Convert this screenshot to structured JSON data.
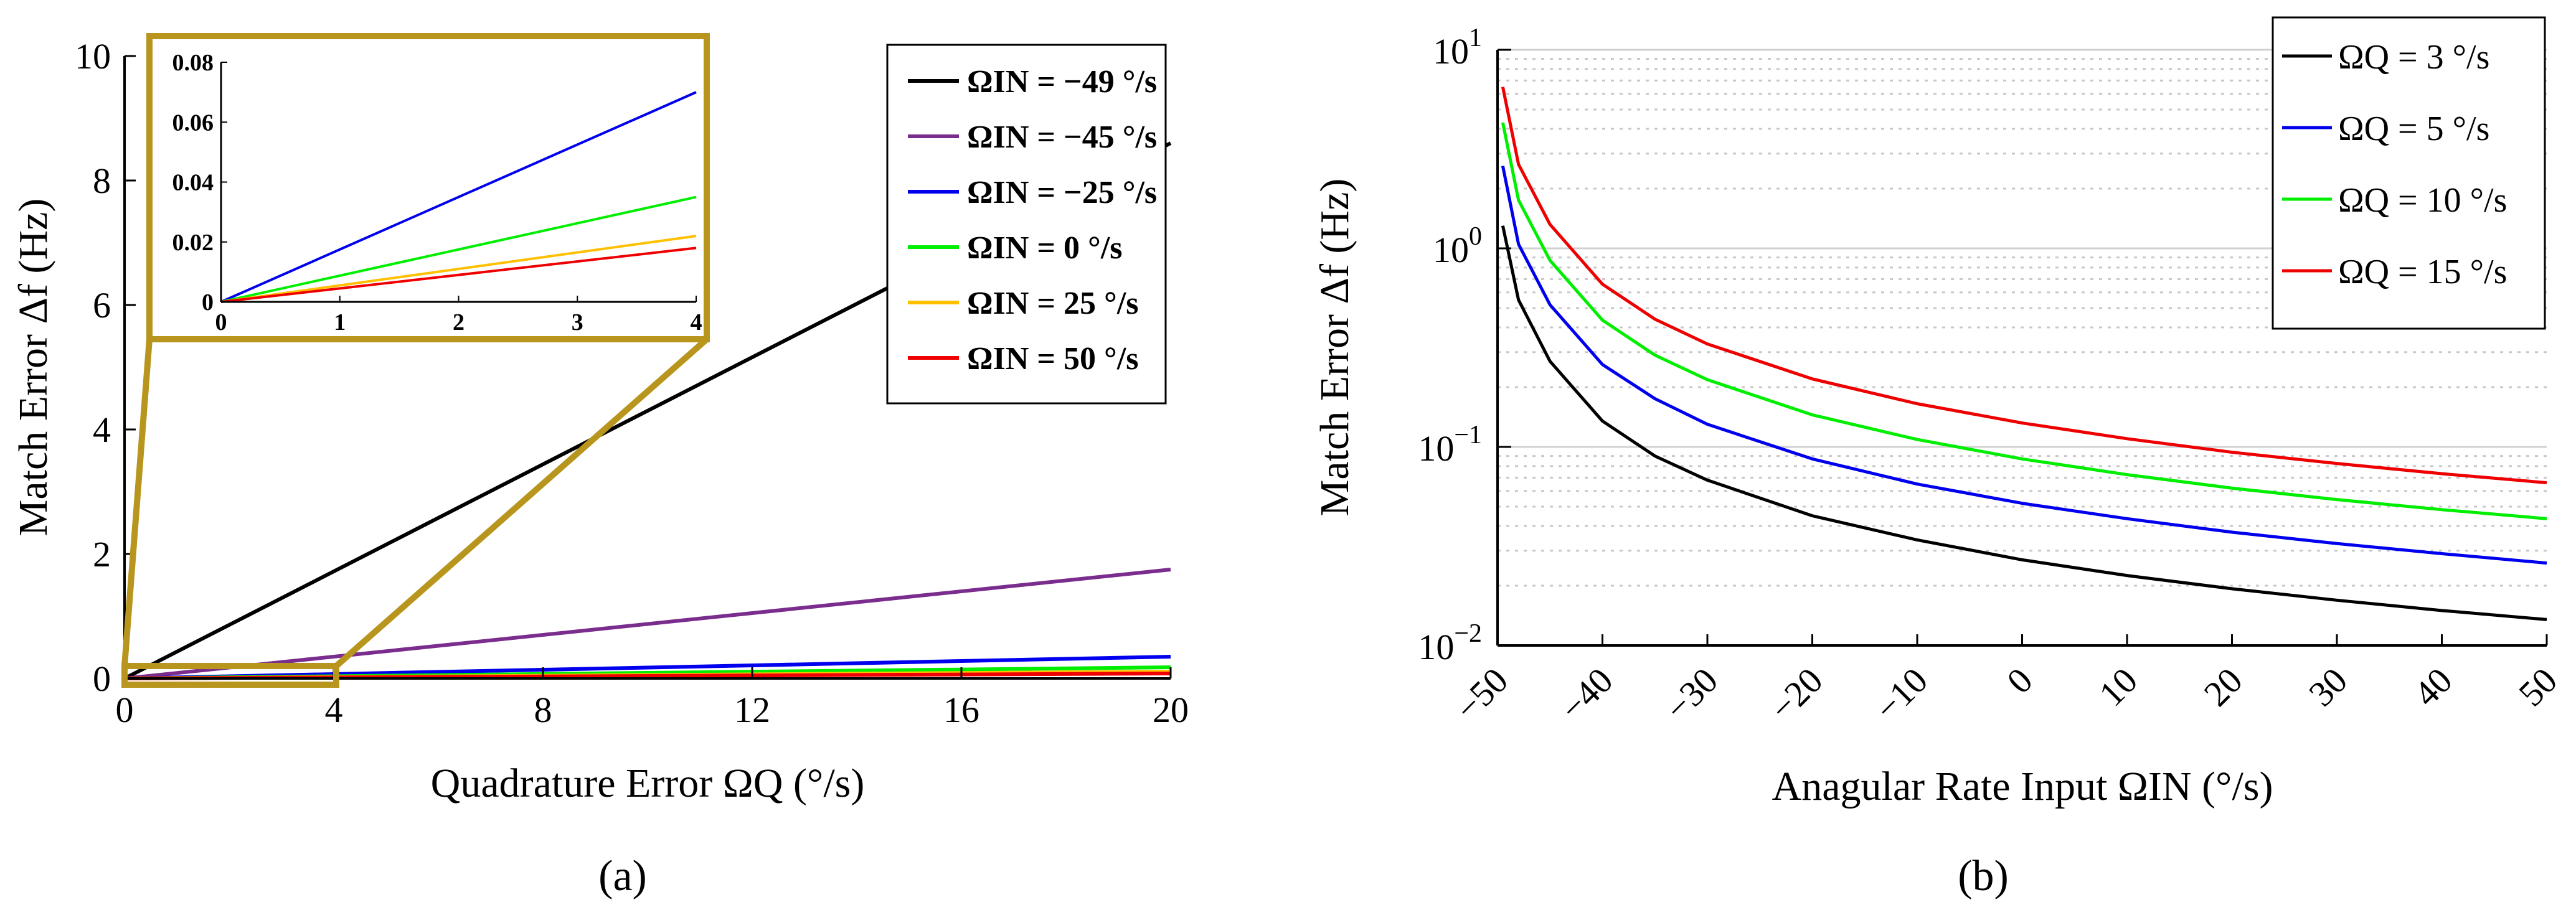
{
  "chart_data": [
    {
      "panel": "(a)",
      "type": "line",
      "xlabel": "Quadrature Error ΩQ (°/s)",
      "ylabel": "Match Error Δf (Hz)",
      "xlim": [
        0,
        20
      ],
      "ylim": [
        0,
        10
      ],
      "xticks": [
        "0",
        "4",
        "8",
        "12",
        "16",
        "20"
      ],
      "yticks": [
        "0",
        "2",
        "4",
        "6",
        "8",
        "10"
      ],
      "legend_position": "top-right",
      "grid": false,
      "series": [
        {
          "name": "ΩIN = −49 °/s",
          "color": "#000000",
          "x": [
            0,
            20
          ],
          "y": [
            0,
            8.6
          ]
        },
        {
          "name": "ΩIN = −45 °/s",
          "color": "#7b2d8e",
          "x": [
            0,
            20
          ],
          "y": [
            0,
            1.75
          ]
        },
        {
          "name": "ΩIN = −25 °/s",
          "color": "#0000ee",
          "x": [
            0,
            20
          ],
          "y": [
            0,
            0.35
          ]
        },
        {
          "name": "ΩIN = 0 °/s",
          "color": "#00ee00",
          "x": [
            0,
            20
          ],
          "y": [
            0,
            0.18
          ]
        },
        {
          "name": "ΩIN = 25 °/s",
          "color": "#ffc000",
          "x": [
            0,
            20
          ],
          "y": [
            0,
            0.11
          ]
        },
        {
          "name": "ΩIN = 50 °/s",
          "color": "#ee0000",
          "x": [
            0,
            20
          ],
          "y": [
            0,
            0.08
          ]
        }
      ],
      "inset": {
        "xlim": [
          0,
          4
        ],
        "ylim": [
          0,
          0.08
        ],
        "xticks": [
          "0",
          "1",
          "2",
          "3",
          "4"
        ],
        "yticks": [
          "0",
          "0.02",
          "0.04",
          "0.06",
          "0.08"
        ],
        "series": [
          {
            "color": "#0000ee",
            "x": [
              0,
              4
            ],
            "y": [
              0,
              0.07
            ]
          },
          {
            "color": "#00ee00",
            "x": [
              0,
              4
            ],
            "y": [
              0,
              0.035
            ]
          },
          {
            "color": "#ffc000",
            "x": [
              0,
              4
            ],
            "y": [
              0,
              0.022
            ]
          },
          {
            "color": "#ee0000",
            "x": [
              0,
              4
            ],
            "y": [
              0,
              0.018
            ]
          }
        ]
      }
    },
    {
      "panel": "(b)",
      "type": "line",
      "xlabel": "Anagular Rate Input ΩIN (°/s)",
      "ylabel": "Match Error Δf (Hz)",
      "xlim": [
        -50,
        50
      ],
      "ylim": [
        0.01,
        10
      ],
      "yscale": "log",
      "xticks": [
        "−50",
        "−40",
        "−30",
        "−20",
        "−10",
        "0",
        "10",
        "20",
        "30",
        "40",
        "50"
      ],
      "yticks": [
        "10−2",
        "10−1",
        "100",
        "101"
      ],
      "grid": true,
      "legend_position": "top-right",
      "series": [
        {
          "name": "ΩQ = 3 °/s",
          "color": "#000000",
          "x": [
            -49.5,
            -48,
            -45,
            -40,
            -35,
            -30,
            -20,
            -10,
            0,
            10,
            20,
            30,
            40,
            50
          ],
          "y": [
            1.3,
            0.55,
            0.27,
            0.135,
            0.09,
            0.068,
            0.045,
            0.034,
            0.027,
            0.0225,
            0.0193,
            0.0169,
            0.015,
            0.0135
          ]
        },
        {
          "name": "ΩQ = 5 °/s",
          "color": "#0000ee",
          "x": [
            -49.5,
            -48,
            -45,
            -40,
            -35,
            -30,
            -20,
            -10,
            0,
            10,
            20,
            30,
            40,
            50
          ],
          "y": [
            2.6,
            1.05,
            0.52,
            0.26,
            0.175,
            0.13,
            0.087,
            0.065,
            0.052,
            0.0435,
            0.0372,
            0.0326,
            0.029,
            0.026
          ]
        },
        {
          "name": "ΩQ = 10 °/s",
          "color": "#00ee00",
          "x": [
            -49.5,
            -48,
            -45,
            -40,
            -35,
            -30,
            -20,
            -10,
            0,
            10,
            20,
            30,
            40,
            50
          ],
          "y": [
            4.3,
            1.75,
            0.87,
            0.435,
            0.29,
            0.218,
            0.145,
            0.109,
            0.087,
            0.0725,
            0.062,
            0.0543,
            0.0483,
            0.0435
          ]
        },
        {
          "name": "ΩQ = 15 °/s",
          "color": "#ee0000",
          "x": [
            -49.5,
            -48,
            -45,
            -40,
            -35,
            -30,
            -20,
            -10,
            0,
            10,
            20,
            30,
            40,
            50
          ],
          "y": [
            6.5,
            2.65,
            1.32,
            0.66,
            0.44,
            0.33,
            0.22,
            0.165,
            0.132,
            0.11,
            0.094,
            0.0825,
            0.0733,
            0.066
          ]
        }
      ]
    }
  ],
  "labels": {
    "a": "(a)",
    "b": "(b)"
  }
}
